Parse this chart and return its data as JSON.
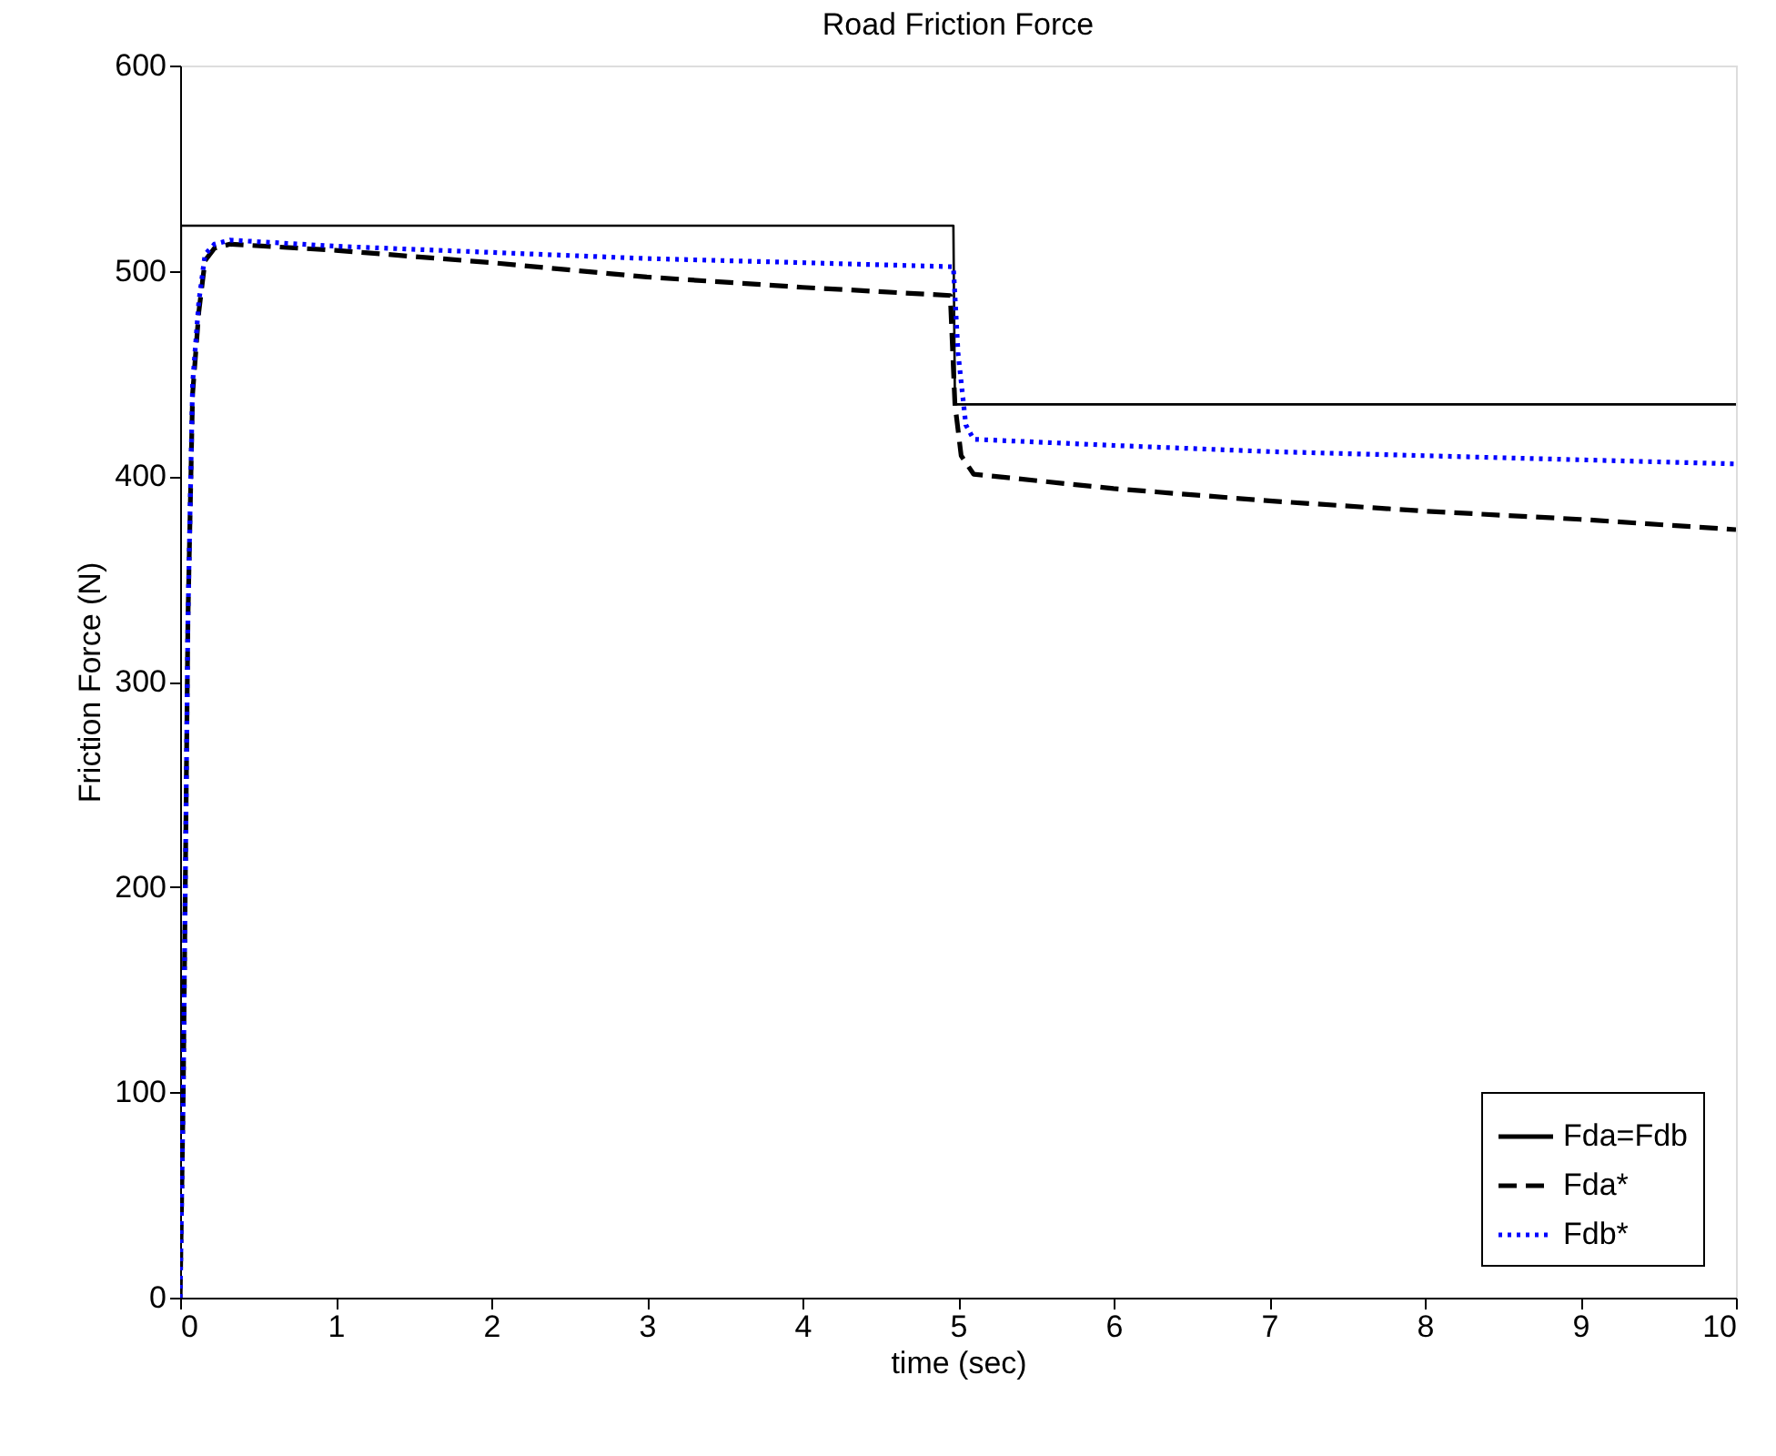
{
  "chart_data": {
    "type": "line",
    "title": "Road Friction Force",
    "xlabel": "time (sec)",
    "ylabel": "Friction Force (N)",
    "xlim": [
      0,
      10
    ],
    "ylim": [
      0,
      600
    ],
    "xticks": [
      0,
      1,
      2,
      3,
      4,
      5,
      6,
      7,
      8,
      9,
      10
    ],
    "yticks": [
      0,
      100,
      200,
      300,
      400,
      500,
      600
    ],
    "grid": false,
    "legend": "bottom right",
    "series": [
      {
        "name": "Fda=Fdb",
        "color": "#000000",
        "line_style": "solid",
        "x": [
          0,
          0.005,
          4.97,
          4.98,
          10
        ],
        "values": [
          0,
          522,
          522,
          435,
          435
        ]
      },
      {
        "name": "Fda*",
        "color": "#000000",
        "line_style": "dashed",
        "x": [
          0,
          0.02,
          0.05,
          0.08,
          0.12,
          0.16,
          0.22,
          0.32,
          1,
          2,
          3,
          4,
          4.95,
          4.98,
          5.02,
          5.1,
          6,
          7,
          8,
          9,
          10
        ],
        "values": [
          0,
          100,
          330,
          440,
          480,
          505,
          511,
          513,
          510,
          504,
          497,
          492,
          488,
          435,
          410,
          401,
          394,
          388,
          383,
          379,
          374
        ]
      },
      {
        "name": "Fdb*",
        "color": "#0000ff",
        "line_style": "dotted",
        "x": [
          0,
          0.02,
          0.05,
          0.08,
          0.12,
          0.16,
          0.22,
          0.32,
          1,
          2,
          3,
          4,
          4.97,
          5.0,
          5.05,
          5.1,
          6,
          7,
          8,
          9,
          10
        ],
        "values": [
          0,
          100,
          330,
          445,
          485,
          508,
          513,
          515,
          512,
          509,
          506,
          504,
          502,
          460,
          425,
          418,
          415,
          412,
          410,
          408,
          406
        ]
      }
    ]
  }
}
